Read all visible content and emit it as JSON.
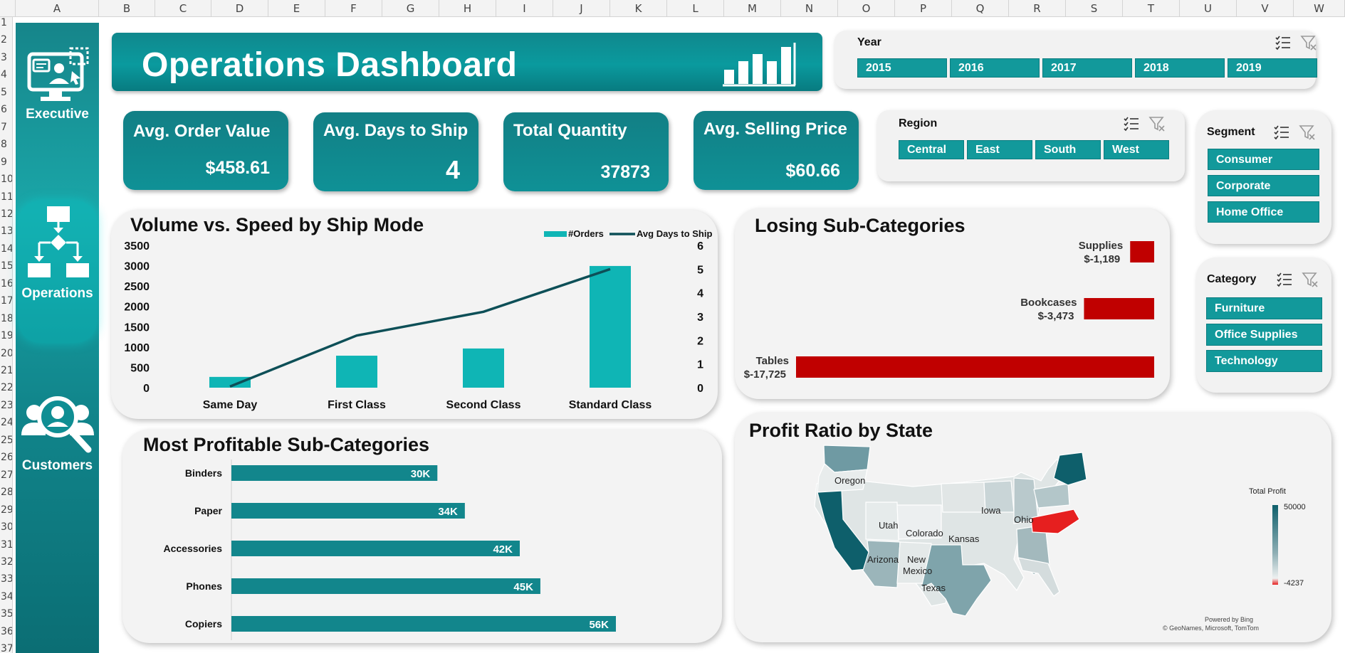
{
  "excel": {
    "columns": [
      "A",
      "B",
      "C",
      "D",
      "E",
      "F",
      "G",
      "H",
      "I",
      "J",
      "K",
      "L",
      "M",
      "N",
      "O",
      "P",
      "Q",
      "R",
      "S",
      "T",
      "U",
      "V",
      "W"
    ],
    "rows": [
      "1",
      "2",
      "3",
      "4",
      "5",
      "6",
      "7",
      "8",
      "9",
      "10",
      "11",
      "12",
      "13",
      "14",
      "15",
      "16",
      "17",
      "18",
      "19",
      "20",
      "21",
      "22",
      "23",
      "24",
      "25",
      "26",
      "27",
      "28",
      "29",
      "30",
      "31",
      "32",
      "33",
      "34",
      "35",
      "36",
      "37"
    ]
  },
  "sidebar": {
    "items": [
      {
        "label": "Executive",
        "icon": "monitor-user-icon"
      },
      {
        "label": "Operations",
        "icon": "flowchart-icon"
      },
      {
        "label": "Customers",
        "icon": "user-search-icon"
      }
    ],
    "active": "Operations"
  },
  "header": {
    "title": "Operations Dashboard",
    "icon": "bar-chart-icon"
  },
  "slicers": {
    "year": {
      "title": "Year",
      "options": [
        "2015",
        "2016",
        "2017",
        "2018",
        "2019"
      ]
    },
    "region": {
      "title": "Region",
      "options": [
        "Central",
        "East",
        "South",
        "West"
      ]
    },
    "segment": {
      "title": "Segment",
      "options": [
        "Consumer",
        "Corporate",
        "Home Office"
      ]
    },
    "category": {
      "title": "Category",
      "options": [
        "Furniture",
        "Office Supplies",
        "Technology"
      ]
    }
  },
  "kpis": [
    {
      "label": "Avg. Order Value",
      "value": "$458.61"
    },
    {
      "label": "Avg. Days to Ship",
      "value": "4"
    },
    {
      "label": "Total Quantity",
      "value": "37873"
    },
    {
      "label": "Avg. Selling Price",
      "value": "$60.66"
    }
  ],
  "volume_chart": {
    "title": "Volume vs. Speed by Ship Mode",
    "legend": [
      "#Orders",
      "Avg Days to Ship"
    ],
    "left_ticks": [
      "0",
      "500",
      "1000",
      "1500",
      "2000",
      "2500",
      "3000",
      "3500"
    ],
    "right_ticks": [
      "0",
      "1",
      "2",
      "3",
      "4",
      "5",
      "6"
    ]
  },
  "losing_chart": {
    "title": "Losing Sub-Categories"
  },
  "profitable_chart": {
    "title": "Most Profitable Sub-Categories"
  },
  "map": {
    "title": "Profit Ratio by State",
    "legend_title": "Total Profit",
    "legend_max": "50000",
    "legend_min": "-4237",
    "state_labels": [
      "Oregon",
      "Utah",
      "Colorado",
      "Iowa",
      "Ohio",
      "Kansas",
      "Arizona",
      "New Mexico",
      "Texas"
    ],
    "credit_1": "Powered by Bing",
    "credit_2": "© GeoNames, Microsoft, TomTom",
    "colors": {
      "high": "#0e5f6b",
      "mid": "#7fa4ab",
      "low": "#dde3e3",
      "loss": "#e61f1f"
    }
  },
  "chart_data": [
    {
      "type": "bar",
      "title": "Volume vs. Speed by Ship Mode",
      "categories": [
        "Same Day",
        "First Class",
        "Second Class",
        "Standard Class"
      ],
      "series": [
        {
          "name": "#Orders",
          "type": "bar",
          "axis": "left",
          "color": "#0fb5b5",
          "values": [
            265,
            787,
            964,
            2994
          ]
        },
        {
          "name": "Avg Days to Ship",
          "type": "line",
          "axis": "right",
          "color": "#0d4f57",
          "values": [
            0.05,
            2.2,
            3.2,
            5.0
          ]
        }
      ],
      "ylim_left": [
        0,
        3500
      ],
      "ylim_right": [
        0,
        6
      ],
      "legend": "top-right",
      "grid": false
    },
    {
      "type": "bar",
      "orientation": "horizontal",
      "title": "Losing Sub-Categories",
      "categories": [
        "Supplies",
        "Bookcases",
        "Tables"
      ],
      "values": [
        -1189,
        -3473,
        -17725
      ],
      "labels": [
        "$-1,189",
        "$-3,473",
        "$-17,725"
      ],
      "color": "#c00000"
    },
    {
      "type": "bar",
      "orientation": "horizontal",
      "title": "Most Profitable Sub-Categories",
      "categories": [
        "Binders",
        "Paper",
        "Accessories",
        "Phones",
        "Copiers"
      ],
      "values": [
        30000,
        34000,
        42000,
        45000,
        56000
      ],
      "labels": [
        "30K",
        "34K",
        "42K",
        "45K",
        "56K"
      ],
      "color": "#12868c"
    }
  ]
}
